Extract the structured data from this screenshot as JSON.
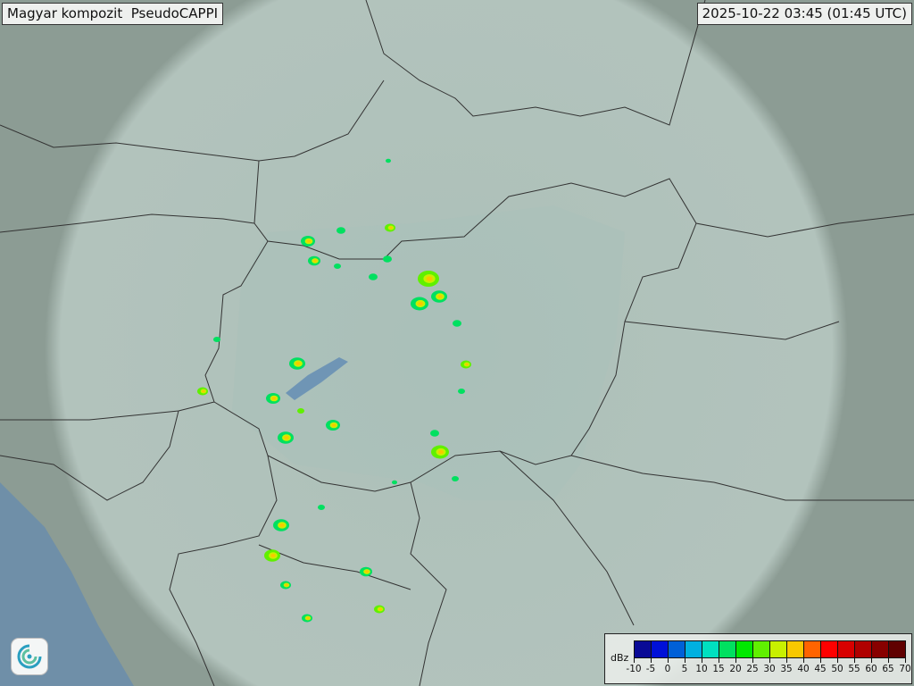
{
  "header": {
    "product_title": "Magyar kompozit  PseudoCAPPI",
    "timestamp": "2025-10-22 03:45 (01:45 UTC)"
  },
  "legend": {
    "unit": "dBz",
    "ticks": [
      "-10",
      "-5",
      "0",
      "5",
      "10",
      "15",
      "20",
      "25",
      "30",
      "35",
      "40",
      "45",
      "50",
      "55",
      "60",
      "65",
      "70"
    ],
    "colors": [
      "#0a0a96",
      "#0010d8",
      "#0060d8",
      "#00b0e0",
      "#00e0c0",
      "#00e060",
      "#00e800",
      "#60f000",
      "#c8f000",
      "#f8c800",
      "#ff6400",
      "#ff0000",
      "#d80000",
      "#b00000",
      "#880000",
      "#600000"
    ]
  },
  "map": {
    "background_color": "#8f9f97",
    "coverage_color": "#c9dcd6",
    "border_color": "#333333",
    "echo_colors": [
      "#00e060",
      "#60f000",
      "#c8f000",
      "#0060d8",
      "#f8c800"
    ]
  },
  "logo": {
    "icon": "met-service-swirl-logo"
  }
}
